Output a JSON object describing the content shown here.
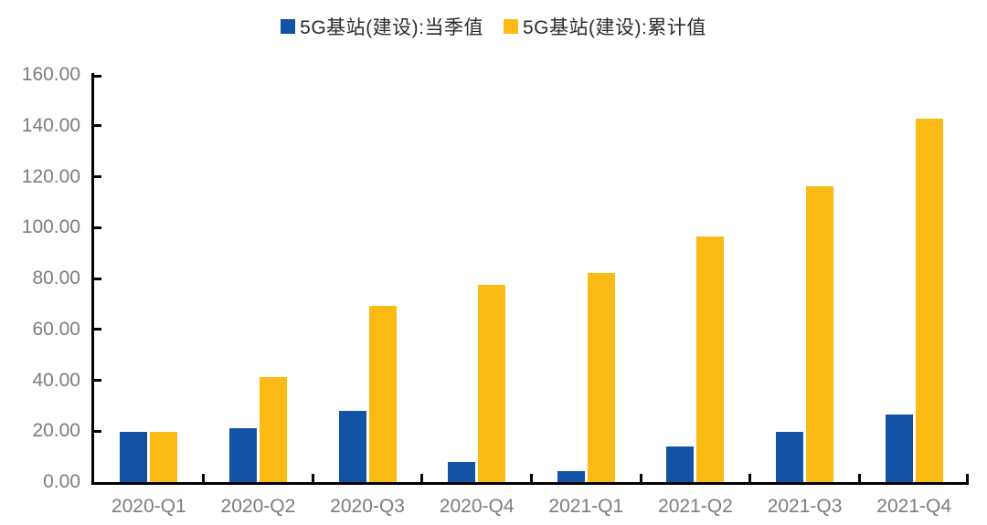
{
  "page": {
    "background": "#ffffff",
    "description": "Bar chart of 5G base station construction by quarter"
  },
  "legend": {
    "position": "top-center",
    "items": [
      {
        "label": "5G基站(建设):当季值",
        "color": "#1253a6",
        "series": "quarterly"
      },
      {
        "label": "5G基站(建设):累计值",
        "color": "#fbba14",
        "series": "cumulative"
      }
    ]
  },
  "chart_data": {
    "type": "bar",
    "title": "",
    "xlabel": "",
    "ylabel": "",
    "categories": [
      "2020-Q1",
      "2020-Q2",
      "2020-Q3",
      "2020-Q4",
      "2021-Q1",
      "2021-Q2",
      "2021-Q3",
      "2021-Q4"
    ],
    "series": [
      {
        "name": "5G基站(建设):当季值",
        "color": "#1253a6",
        "values": [
          19.8,
          21.2,
          28.1,
          8.0,
          4.5,
          14.1,
          19.7,
          26.6
        ]
      },
      {
        "name": "5G基站(建设):累计值",
        "color": "#fbba14",
        "values": [
          19.8,
          41.2,
          69.3,
          77.6,
          82.0,
          96.5,
          116.1,
          142.9
        ]
      }
    ],
    "ylim": [
      0,
      160
    ],
    "ytick_step": 20,
    "ytick_labels": [
      "0.00",
      "20.00",
      "40.00",
      "60.00",
      "80.00",
      "100.00",
      "120.00",
      "140.00",
      "160.00"
    ],
    "grid": false,
    "legend_position": "top-center",
    "axis_color": "#000000",
    "tick_label_color": "#7a7d82",
    "tick_direction": "inward"
  }
}
